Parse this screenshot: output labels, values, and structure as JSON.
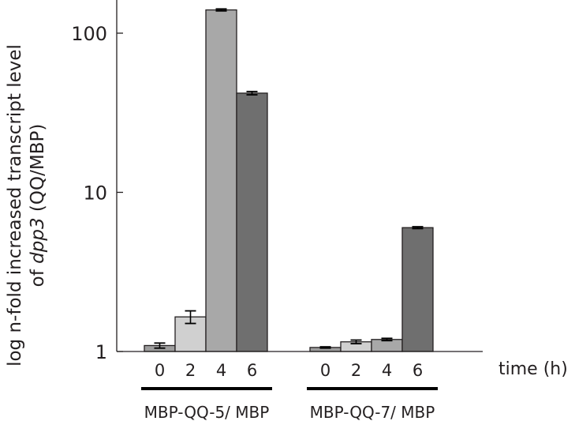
{
  "chart_data": {
    "type": "bar",
    "y_scale": "log",
    "ylim": [
      1,
      150
    ],
    "yticks": [
      1,
      10,
      100
    ],
    "ytick_labels": [
      "1",
      "10",
      "100"
    ],
    "ylabel_line1": "log n-fold increased transcript level",
    "ylabel_line2_prefix": "of ",
    "ylabel_line2_gene": "dpp3",
    "ylabel_line2_suffix": " (QQ/MBP)",
    "xlabel": "time (h)",
    "categories": [
      "0",
      "2",
      "4",
      "6"
    ],
    "bar_colors": [
      "#9d9d9d",
      "#d0d0d0",
      "#a8a8a8",
      "#6f6f6f"
    ],
    "groups": [
      {
        "name": "MBP-QQ-5/ MBP",
        "values": [
          1.09,
          1.65,
          140,
          42
        ],
        "errors": [
          0.04,
          0.15,
          2,
          1
        ]
      },
      {
        "name": "MBP-QQ-7/ MBP",
        "values": [
          1.06,
          1.15,
          1.19,
          6.0
        ],
        "errors": [
          0.01,
          0.03,
          0.02,
          0.08
        ]
      }
    ]
  }
}
